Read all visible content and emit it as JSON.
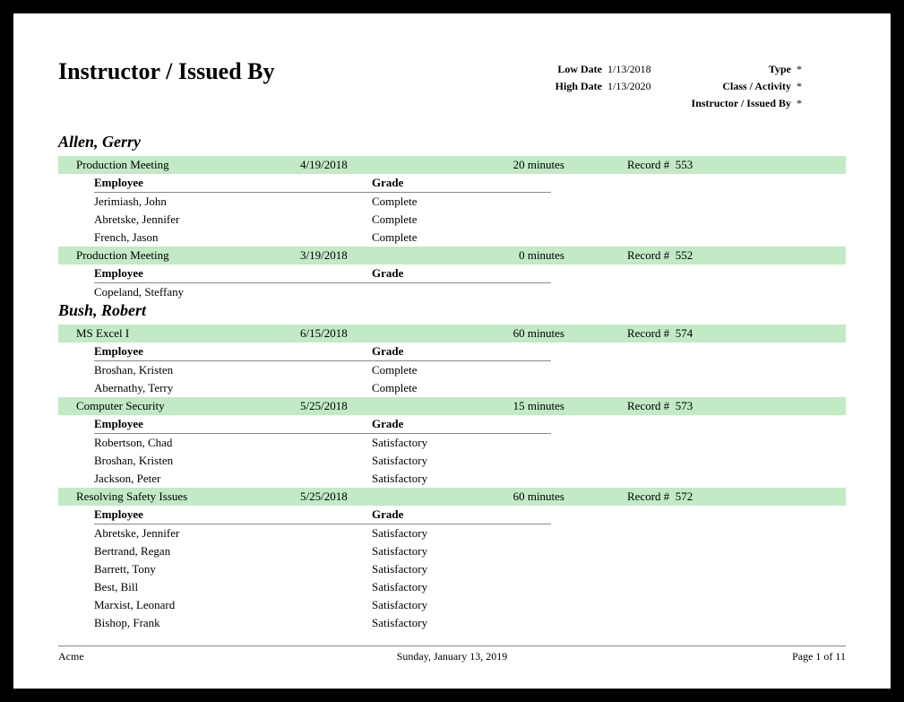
{
  "report_title": "Instructor / Issued By",
  "header": {
    "low_date_label": "Low Date",
    "low_date_value": "1/13/2018",
    "high_date_label": "High Date",
    "high_date_value": "1/13/2020",
    "type_label": "Type",
    "type_value": "*",
    "class_label": "Class / Activity",
    "class_value": "*",
    "instr_label": "Instructor / Issued By",
    "instr_value": "*"
  },
  "col_labels": {
    "employee": "Employee",
    "grade": "Grade",
    "record": "Record #"
  },
  "instructors": [
    {
      "name": "Allen, Gerry",
      "classes": [
        {
          "name": "Production Meeting",
          "date": "4/19/2018",
          "duration": "20 minutes",
          "record": "553",
          "employees": [
            {
              "name": "Jerimiash, John",
              "grade": "Complete"
            },
            {
              "name": "Abretske, Jennifer",
              "grade": "Complete"
            },
            {
              "name": "French, Jason",
              "grade": "Complete"
            }
          ]
        },
        {
          "name": "Production Meeting",
          "date": "3/19/2018",
          "duration": "0 minutes",
          "record": "552",
          "employees": [
            {
              "name": "Copeland, Steffany",
              "grade": ""
            }
          ]
        }
      ]
    },
    {
      "name": "Bush, Robert",
      "classes": [
        {
          "name": "MS Excel I",
          "date": "6/15/2018",
          "duration": "60 minutes",
          "record": "574",
          "employees": [
            {
              "name": "Broshan, Kristen",
              "grade": "Complete"
            },
            {
              "name": "Abernathy, Terry",
              "grade": "Complete"
            }
          ]
        },
        {
          "name": "Computer Security",
          "date": "5/25/2018",
          "duration": "15 minutes",
          "record": "573",
          "employees": [
            {
              "name": "Robertson, Chad",
              "grade": "Satisfactory"
            },
            {
              "name": "Broshan, Kristen",
              "grade": "Satisfactory"
            },
            {
              "name": "Jackson, Peter",
              "grade": "Satisfactory"
            }
          ]
        },
        {
          "name": "Resolving Safety Issues",
          "date": "5/25/2018",
          "duration": "60 minutes",
          "record": "572",
          "employees": [
            {
              "name": "Abretske, Jennifer",
              "grade": "Satisfactory"
            },
            {
              "name": "Bertrand, Regan",
              "grade": "Satisfactory"
            },
            {
              "name": "Barrett, Tony",
              "grade": "Satisfactory"
            },
            {
              "name": "Best, Bill",
              "grade": "Satisfactory"
            },
            {
              "name": "Marxist, Leonard",
              "grade": "Satisfactory"
            },
            {
              "name": "Bishop, Frank",
              "grade": "Satisfactory"
            }
          ]
        }
      ]
    }
  ],
  "footer": {
    "left": "Acme",
    "center": "Sunday, January 13, 2019",
    "right": "Page 1 of 11"
  },
  "colors": {
    "class_bar_bg": "#c1eac5",
    "page_bg": "#ffffff",
    "border": "#888888"
  }
}
